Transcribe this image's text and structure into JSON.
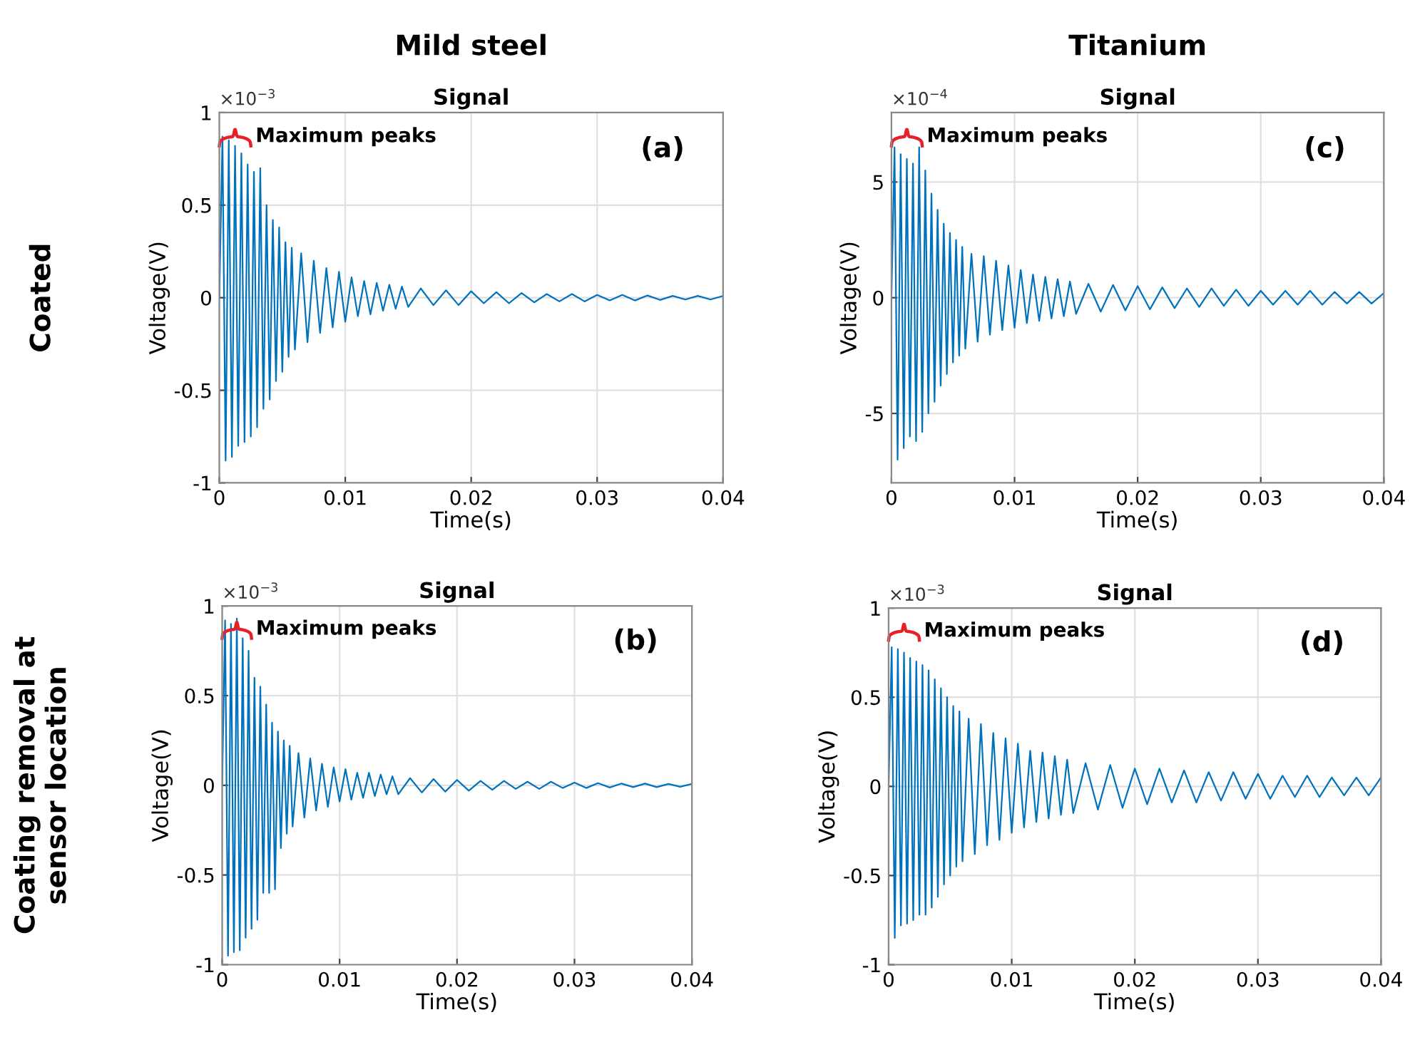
{
  "chart_data": [
    {
      "type": "line",
      "title": "Signal",
      "xlabel": "Time(s)",
      "ylabel": "Voltage(V)",
      "annotations": [
        "(a)",
        "Maximum peaks",
        "×10$^{−3}$",
        "Mild steel",
        "Coated"
      ],
      "x": [
        0,
        0.00025,
        0.0005,
        0.00075,
        0.001,
        0.00125,
        0.0015,
        0.00175,
        0.002,
        0.00225,
        0.0025,
        0.00275,
        0.003,
        0.00325,
        0.0035,
        0.00375,
        0.004,
        0.00425,
        0.0045,
        0.00475,
        0.005,
        0.00525,
        0.0055,
        0.00575,
        0.006,
        0.0065,
        0.007,
        0.0075,
        0.008,
        0.0085,
        0.009,
        0.0095,
        0.01,
        0.0105,
        0.011,
        0.0115,
        0.012,
        0.0125,
        0.013,
        0.0135,
        0.014,
        0.0145,
        0.015,
        0.016,
        0.017,
        0.018,
        0.019,
        0.02,
        0.021,
        0.022,
        0.023,
        0.024,
        0.025,
        0.026,
        0.027,
        0.028,
        0.029,
        0.03,
        0.031,
        0.032,
        0.033,
        0.034,
        0.035,
        0.036,
        0.037,
        0.038,
        0.039,
        0.04
      ],
      "series": [
        {
          "color": "#0072bd",
          "values": [
            0,
            0.87,
            -0.88,
            0.85,
            -0.86,
            0.82,
            -0.8,
            0.78,
            -0.78,
            0.72,
            -0.75,
            0.68,
            -0.7,
            0.7,
            -0.6,
            0.5,
            -0.55,
            0.42,
            -0.45,
            0.38,
            -0.4,
            0.3,
            -0.32,
            0.27,
            -0.28,
            0.24,
            -0.24,
            0.2,
            -0.19,
            0.16,
            -0.16,
            0.14,
            -0.13,
            0.11,
            -0.1,
            0.09,
            -0.09,
            0.08,
            -0.07,
            0.07,
            -0.06,
            0.06,
            -0.05,
            0.05,
            -0.04,
            0.04,
            -0.04,
            0.035,
            -0.03,
            0.03,
            -0.03,
            0.025,
            -0.025,
            0.02,
            -0.02,
            0.02,
            -0.02,
            0.015,
            -0.015,
            0.015,
            -0.015,
            0.012,
            -0.012,
            0.01,
            -0.01,
            0.01,
            -0.01,
            0.01
          ]
        }
      ],
      "xlim": [
        0,
        0.04
      ],
      "xticks": [
        0,
        0.01,
        0.02,
        0.03,
        0.04
      ],
      "ylim": [
        -1,
        1
      ],
      "yticks": [
        -1,
        -0.5,
        0,
        0.5,
        1
      ],
      "grid": true,
      "legend": false,
      "marker": "none",
      "line_style": "solid"
    },
    {
      "type": "line",
      "title": "Signal",
      "xlabel": "Time(s)",
      "ylabel": "Voltage(V)",
      "annotations": [
        "(c)",
        "Maximum peaks",
        "×10$^{−4}$",
        "Titanium"
      ],
      "x": [
        0,
        0.00025,
        0.0005,
        0.00075,
        0.001,
        0.00125,
        0.0015,
        0.00175,
        0.002,
        0.00225,
        0.0025,
        0.00275,
        0.003,
        0.00325,
        0.0035,
        0.00375,
        0.004,
        0.00425,
        0.0045,
        0.00475,
        0.005,
        0.00525,
        0.0055,
        0.00575,
        0.006,
        0.0065,
        0.007,
        0.0075,
        0.008,
        0.0085,
        0.009,
        0.0095,
        0.01,
        0.0105,
        0.011,
        0.0115,
        0.012,
        0.0125,
        0.013,
        0.0135,
        0.014,
        0.0145,
        0.015,
        0.016,
        0.017,
        0.018,
        0.019,
        0.02,
        0.021,
        0.022,
        0.023,
        0.024,
        0.025,
        0.026,
        0.027,
        0.028,
        0.029,
        0.03,
        0.031,
        0.032,
        0.033,
        0.034,
        0.035,
        0.036,
        0.037,
        0.038,
        0.039,
        0.04
      ],
      "series": [
        {
          "color": "#0072bd",
          "values": [
            0,
            6.5,
            -7,
            6.2,
            -6.5,
            6,
            -6,
            5.8,
            -6.2,
            6.5,
            -5.8,
            5.5,
            -5,
            4.5,
            -4.5,
            3.8,
            -3.8,
            3.2,
            -3.3,
            2.8,
            -2.8,
            2.5,
            -2.5,
            2.2,
            -2.2,
            1.9,
            -1.9,
            1.8,
            -1.6,
            1.6,
            -1.4,
            1.4,
            -1.3,
            1.2,
            -1.1,
            1.0,
            -1.0,
            0.9,
            -0.9,
            0.8,
            -0.8,
            0.7,
            -0.7,
            0.6,
            -0.6,
            0.55,
            -0.55,
            0.5,
            -0.5,
            0.45,
            -0.45,
            0.4,
            -0.4,
            0.4,
            -0.35,
            0.35,
            -0.35,
            0.3,
            -0.3,
            0.3,
            -0.3,
            0.3,
            -0.3,
            0.25,
            -0.25,
            0.25,
            -0.25,
            0.2
          ]
        }
      ],
      "xlim": [
        0,
        0.04
      ],
      "xticks": [
        0,
        0.01,
        0.02,
        0.03,
        0.04
      ],
      "ylim": [
        -8,
        8
      ],
      "yticks": [
        -5,
        0,
        5
      ],
      "grid": true,
      "legend": false,
      "marker": "none",
      "line_style": "solid"
    },
    {
      "type": "line",
      "title": "Signal",
      "xlabel": "Time(s)",
      "ylabel": "Voltage(V)",
      "annotations": [
        "(b)",
        "Maximum peaks",
        "×10$^{−3}$",
        "Coating removal at\nsensor location"
      ],
      "x": [
        0,
        0.00025,
        0.0005,
        0.00075,
        0.001,
        0.00125,
        0.0015,
        0.00175,
        0.002,
        0.00225,
        0.0025,
        0.00275,
        0.003,
        0.00325,
        0.0035,
        0.00375,
        0.004,
        0.00425,
        0.0045,
        0.00475,
        0.005,
        0.00525,
        0.0055,
        0.00575,
        0.006,
        0.0065,
        0.007,
        0.0075,
        0.008,
        0.0085,
        0.009,
        0.0095,
        0.01,
        0.0105,
        0.011,
        0.0115,
        0.012,
        0.0125,
        0.013,
        0.0135,
        0.014,
        0.0145,
        0.015,
        0.016,
        0.017,
        0.018,
        0.019,
        0.02,
        0.021,
        0.022,
        0.023,
        0.024,
        0.025,
        0.026,
        0.027,
        0.028,
        0.029,
        0.03,
        0.031,
        0.032,
        0.033,
        0.034,
        0.035,
        0.036,
        0.037,
        0.038,
        0.039,
        0.04
      ],
      "series": [
        {
          "color": "#0072bd",
          "values": [
            0,
            0.92,
            -0.95,
            0.9,
            -0.93,
            0.93,
            -0.92,
            0.82,
            -0.85,
            0.75,
            -0.8,
            0.6,
            -0.75,
            0.55,
            -0.6,
            0.45,
            -0.6,
            0.35,
            -0.58,
            0.3,
            -0.35,
            0.25,
            -0.27,
            0.22,
            -0.23,
            0.18,
            -0.18,
            0.15,
            -0.14,
            0.12,
            -0.12,
            0.1,
            -0.09,
            0.09,
            -0.08,
            0.07,
            -0.07,
            0.07,
            -0.06,
            0.06,
            -0.05,
            0.05,
            -0.05,
            0.04,
            -0.04,
            0.035,
            -0.035,
            0.03,
            -0.03,
            0.025,
            -0.025,
            0.025,
            -0.02,
            0.02,
            -0.02,
            0.02,
            -0.015,
            0.015,
            -0.015,
            0.012,
            -0.012,
            0.01,
            -0.01,
            0.01,
            -0.01,
            0.008,
            -0.008,
            0.008
          ]
        }
      ],
      "xlim": [
        0,
        0.04
      ],
      "xticks": [
        0,
        0.01,
        0.02,
        0.03,
        0.04
      ],
      "ylim": [
        -1,
        1
      ],
      "yticks": [
        -1,
        -0.5,
        0,
        0.5,
        1
      ],
      "grid": true,
      "legend": false,
      "marker": "none",
      "line_style": "solid"
    },
    {
      "type": "line",
      "title": "Signal",
      "xlabel": "Time(s)",
      "ylabel": "Voltage(V)",
      "annotations": [
        "(d)",
        "Maximum peaks",
        "×10$^{−3}$"
      ],
      "x": [
        0,
        0.00025,
        0.0005,
        0.00075,
        0.001,
        0.00125,
        0.0015,
        0.00175,
        0.002,
        0.00225,
        0.0025,
        0.00275,
        0.003,
        0.00325,
        0.0035,
        0.00375,
        0.004,
        0.00425,
        0.0045,
        0.00475,
        0.005,
        0.00525,
        0.0055,
        0.00575,
        0.006,
        0.0065,
        0.007,
        0.0075,
        0.008,
        0.0085,
        0.009,
        0.0095,
        0.01,
        0.0105,
        0.011,
        0.0115,
        0.012,
        0.0125,
        0.013,
        0.0135,
        0.014,
        0.0145,
        0.015,
        0.016,
        0.017,
        0.018,
        0.019,
        0.02,
        0.021,
        0.022,
        0.023,
        0.024,
        0.025,
        0.026,
        0.027,
        0.028,
        0.029,
        0.03,
        0.031,
        0.032,
        0.033,
        0.034,
        0.035,
        0.036,
        0.037,
        0.038,
        0.039,
        0.04
      ],
      "series": [
        {
          "color": "#0072bd",
          "values": [
            0,
            0.78,
            -0.85,
            0.77,
            -0.78,
            0.75,
            -0.77,
            0.72,
            -0.75,
            0.7,
            -0.72,
            0.68,
            -0.72,
            0.65,
            -0.68,
            0.6,
            -0.62,
            0.55,
            -0.55,
            0.5,
            -0.5,
            0.45,
            -0.45,
            0.42,
            -0.42,
            0.38,
            -0.38,
            0.35,
            -0.33,
            0.3,
            -0.3,
            0.27,
            -0.26,
            0.24,
            -0.23,
            0.2,
            -0.2,
            0.19,
            -0.18,
            0.17,
            -0.16,
            0.15,
            -0.15,
            0.13,
            -0.13,
            0.12,
            -0.12,
            0.1,
            -0.1,
            0.1,
            -0.09,
            0.09,
            -0.09,
            0.08,
            -0.08,
            0.08,
            -0.07,
            0.07,
            -0.07,
            0.06,
            -0.06,
            0.06,
            -0.06,
            0.05,
            -0.05,
            0.05,
            -0.05,
            0.05
          ]
        }
      ],
      "xlim": [
        0,
        0.04
      ],
      "xticks": [
        0,
        0.01,
        0.02,
        0.03,
        0.04
      ],
      "ylim": [
        -1,
        1
      ],
      "yticks": [
        -1,
        -0.5,
        0,
        0.5,
        1
      ],
      "grid": true,
      "legend": false,
      "marker": "none",
      "line_style": "solid"
    }
  ]
}
